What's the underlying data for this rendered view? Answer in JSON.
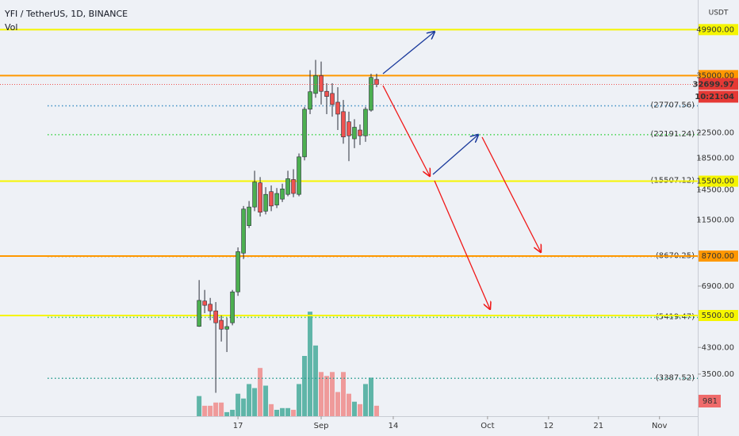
{
  "chart_data": {
    "type": "candlestick",
    "title": "YFI / TetherUS, 1D, BINANCE",
    "volume_title": "Vol",
    "y_unit": "USDT",
    "log_scale": true,
    "x": [
      10,
      11,
      12,
      13,
      14,
      15,
      16,
      17,
      18,
      19,
      20,
      21,
      22,
      23,
      24,
      25,
      26,
      27,
      28,
      29,
      30,
      31,
      32,
      33,
      34,
      35,
      36,
      37,
      38,
      39,
      40,
      41,
      42
    ],
    "open": [
      5060,
      6150,
      6000,
      5700,
      5300,
      4950,
      5200,
      6600,
      8900,
      11000,
      12700,
      15300,
      12300,
      14300,
      12900,
      13500,
      14000,
      15700,
      14000,
      18700,
      27000,
      30500,
      35000,
      31000,
      30500,
      28500,
      26500,
      24500,
      21500,
      23000,
      22000,
      26800,
      34000
    ],
    "high": [
      7230,
      6700,
      6300,
      6100,
      5500,
      5400,
      6700,
      9300,
      12800,
      13300,
      16800,
      16000,
      14800,
      15000,
      14700,
      15200,
      16800,
      17000,
      19200,
      27500,
      36500,
      39500,
      39000,
      33000,
      33000,
      32000,
      29000,
      26500,
      25000,
      24000,
      27500,
      35500,
      35500
    ],
    "low": [
      5040,
      5600,
      5300,
      3030,
      4500,
      4150,
      5100,
      6400,
      8500,
      10800,
      12300,
      11800,
      12000,
      12300,
      12600,
      13200,
      13800,
      13700,
      13800,
      18200,
      26000,
      29500,
      28000,
      26000,
      25500,
      23000,
      20700,
      18100,
      20000,
      20500,
      21000,
      26500,
      32000
    ],
    "close": [
      6180,
      5950,
      5700,
      5200,
      4950,
      5050,
      6600,
      9000,
      12500,
      12700,
      15400,
      12200,
      14000,
      12800,
      14100,
      14600,
      15800,
      14100,
      18700,
      27000,
      30900,
      35000,
      31000,
      29800,
      28000,
      26000,
      21800,
      22000,
      23500,
      22000,
      27000,
      34500,
      32699.97
    ],
    "volume": [
      1890,
      980,
      980,
      1280,
      1280,
      380,
      600,
      2110,
      1660,
      3020,
      2640,
      4530,
      2870,
      1130,
      600,
      760,
      760,
      600,
      3020,
      5660,
      9820,
      6640,
      4150,
      3780,
      4150,
      2270,
      4150,
      2110,
      1360,
      1130,
      3020,
      3620,
      981
    ],
    "up_color": "#4caf50",
    "down_color": "#ef5350",
    "volume_up_color": "#5fb5a8",
    "volume_down_color": "#ef9a9a",
    "xlim": [
      -25.9,
      99.9
    ],
    "ylim": [
      2530,
      62700
    ],
    "volume_ylim": [
      0,
      39100
    ],
    "xticks": [
      {
        "value": 17,
        "label": "17"
      },
      {
        "value": 32,
        "label": "Sep"
      },
      {
        "value": 45,
        "label": "14"
      },
      {
        "value": 62,
        "label": "Oct"
      },
      {
        "value": 73,
        "label": "12"
      },
      {
        "value": 82,
        "label": "21"
      },
      {
        "value": 93,
        "label": "Nov"
      }
    ],
    "yticks": [
      {
        "value": 22500,
        "label": "22500.00"
      },
      {
        "value": 18500,
        "label": "18500.00"
      },
      {
        "value": 14500,
        "label": "14500.00"
      },
      {
        "value": 11500,
        "label": "11500.00"
      },
      {
        "value": 6900,
        "label": "6900.00"
      },
      {
        "value": 4300,
        "label": "4300.00"
      },
      {
        "value": 3500,
        "label": "3500.00"
      }
    ],
    "levels": [
      {
        "value": 49900,
        "label": "49900.00",
        "color": "#f5f500"
      },
      {
        "value": 35000,
        "label": "35000.00",
        "color": "#ff9800"
      },
      {
        "value": 15500,
        "label": "15500.00",
        "color": "#f5f500"
      },
      {
        "value": 8700,
        "label": "8700.00",
        "color": "#ff9800"
      },
      {
        "value": 5500,
        "label": "5500.00",
        "color": "#f5f500"
      }
    ],
    "dotted_levels": [
      {
        "value": 27707.56,
        "label": "(27707.56)",
        "color": "#3d8fc4"
      },
      {
        "value": 22191.24,
        "label": "(22191.24)",
        "color": "#3fd34a"
      },
      {
        "value": 15507.12,
        "label": "(15507.12)",
        "color": "#e05a5a"
      },
      {
        "value": 8670.25,
        "label": "(8670.25)",
        "color": "#b8962a"
      },
      {
        "value": 5419.47,
        "label": "(5419.47)",
        "color": "#3fc760"
      },
      {
        "value": 3387.52,
        "label": "(3387.52)",
        "color": "#2a9d8f"
      }
    ],
    "countdown": "10:21:04"
  }
}
